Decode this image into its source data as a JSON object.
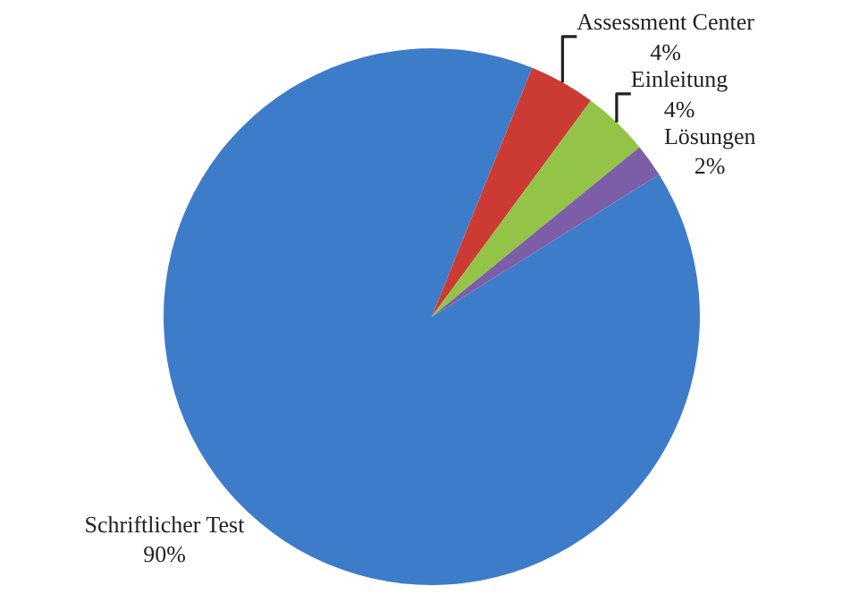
{
  "chart_data": {
    "type": "pie",
    "categories": [
      "Schriftlicher Test",
      "Assessment Center",
      "Einleitung",
      "Lösungen"
    ],
    "values": [
      90,
      4,
      4,
      2
    ],
    "value_labels": [
      "90%",
      "4%",
      "4%",
      "2%"
    ],
    "colors": [
      "#3d7cc9",
      "#cc3b33",
      "#93c447",
      "#7b5ea7"
    ],
    "legend": false
  }
}
